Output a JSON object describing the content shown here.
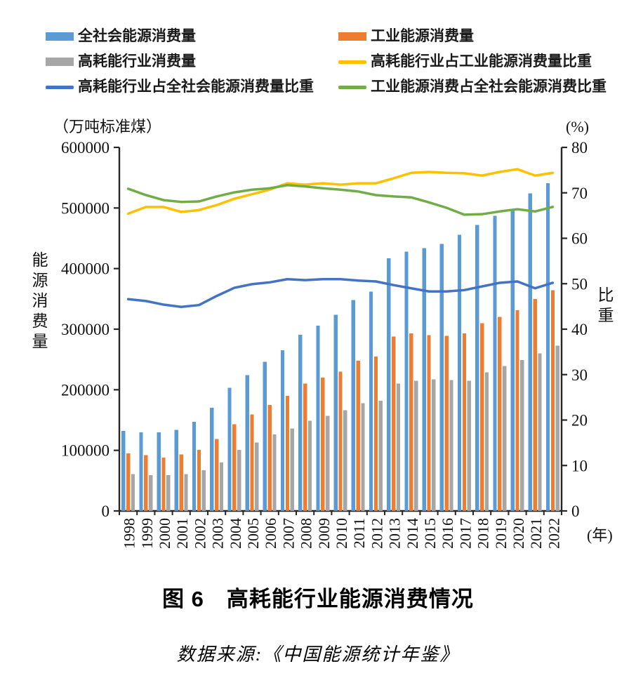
{
  "title": "图 6　高耗能行业能源消费情况",
  "source": "数据来源:《中国能源统计年鉴》",
  "legend": {
    "items": [
      {
        "label": "全社会能源消费量",
        "color": "#5B9BD5",
        "swatch": "bar"
      },
      {
        "label": "工业能源消费量",
        "color": "#ED7D31",
        "swatch": "bar"
      },
      {
        "label": "高耗能行业消费量",
        "color": "#A6A6A6",
        "swatch": "bar"
      },
      {
        "label": "高耗能行业占工业能源消费量比重",
        "color": "#FFC000",
        "swatch": "line"
      },
      {
        "label": "高耗能行业占全社会能源消费量比重",
        "color": "#4472C4",
        "swatch": "line"
      },
      {
        "label": "工业能源消费占全社会能源消费比重",
        "color": "#70AD47",
        "swatch": "line"
      }
    ]
  },
  "chart_data": {
    "type": "bar",
    "subtype": "combo-bar-line-dual-axis",
    "categories": [
      1998,
      1999,
      2000,
      2001,
      2002,
      2003,
      2004,
      2005,
      2006,
      2007,
      2008,
      2009,
      2010,
      2011,
      2012,
      2013,
      2014,
      2015,
      2016,
      2017,
      2018,
      2019,
      2020,
      2021,
      2022
    ],
    "bar_series": [
      {
        "id": "total-energy-consumption",
        "name": "全社会能源消费量",
        "color": "#5B9BD5",
        "axis": "left",
        "values": [
          132000,
          130000,
          130000,
          134000,
          147000,
          170000,
          203000,
          224000,
          246000,
          265000,
          291000,
          306000,
          324000,
          348000,
          362000,
          417000,
          428000,
          434000,
          441000,
          456000,
          472000,
          487000,
          498000,
          524000,
          541000
        ]
      },
      {
        "id": "industrial-energy-consumption",
        "name": "工业能源消费量",
        "color": "#ED7D31",
        "axis": "left",
        "values": [
          95000,
          92000,
          88000,
          93000,
          101000,
          119000,
          143000,
          159000,
          175000,
          190000,
          210000,
          220000,
          230000,
          248000,
          255000,
          288000,
          293000,
          290000,
          289000,
          293000,
          310000,
          320000,
          331000,
          350000,
          364000
        ]
      },
      {
        "id": "high-energy-industry-consumption",
        "name": "高耗能行业消费量",
        "color": "#A6A6A6",
        "axis": "left",
        "values": [
          61000,
          59000,
          59000,
          61000,
          67000,
          80000,
          101000,
          113000,
          126000,
          136000,
          149000,
          157000,
          166000,
          178000,
          182000,
          210000,
          215000,
          217000,
          216000,
          215000,
          229000,
          239000,
          249000,
          260000,
          273000
        ]
      }
    ],
    "line_series": [
      {
        "id": "high-energy-share-of-industrial",
        "name": "高耗能行业占工业能源消费量比重",
        "color": "#FFC000",
        "axis": "right",
        "values": [
          65.4,
          66.9,
          66.9,
          65.8,
          66.2,
          67.3,
          68.7,
          69.7,
          70.7,
          72.1,
          71.8,
          72.1,
          71.8,
          72.1,
          72.1,
          73.2,
          74.4,
          74.6,
          74.4,
          74.3,
          73.8,
          74.6,
          75.2,
          73.8,
          74.4
        ]
      },
      {
        "id": "high-energy-share-of-total",
        "name": "高耗能行业占全社会能源消费量比重",
        "color": "#4472C4",
        "axis": "right",
        "values": [
          46.6,
          46.2,
          45.4,
          44.9,
          45.3,
          47.3,
          49.1,
          49.9,
          50.3,
          51.0,
          50.8,
          51.0,
          51.0,
          50.7,
          50.5,
          49.7,
          49.0,
          48.3,
          48.3,
          48.6,
          49.4,
          50.2,
          50.5,
          49.0,
          50.2
        ]
      },
      {
        "id": "industrial-share-of-total",
        "name": "工业能源消费占全社会能源消费比重",
        "color": "#70AD47",
        "axis": "right",
        "values": [
          70.9,
          69.5,
          68.4,
          68.0,
          68.1,
          69.2,
          70.1,
          70.7,
          71.0,
          71.7,
          71.4,
          71.0,
          70.7,
          70.3,
          69.5,
          69.2,
          69.0,
          67.9,
          66.7,
          65.2,
          65.3,
          65.9,
          66.4,
          65.9,
          66.9
        ]
      }
    ],
    "left_axis": {
      "unit": "（万吨标准煤）",
      "label": "能源消费量",
      "min": 0,
      "max": 600000,
      "step": 100000
    },
    "right_axis": {
      "unit": "(%)",
      "label": "比重",
      "min": 0,
      "max": 80,
      "step": 10
    },
    "x_axis": {
      "unit": "(年)"
    },
    "grid": false,
    "legend_position": "top"
  }
}
